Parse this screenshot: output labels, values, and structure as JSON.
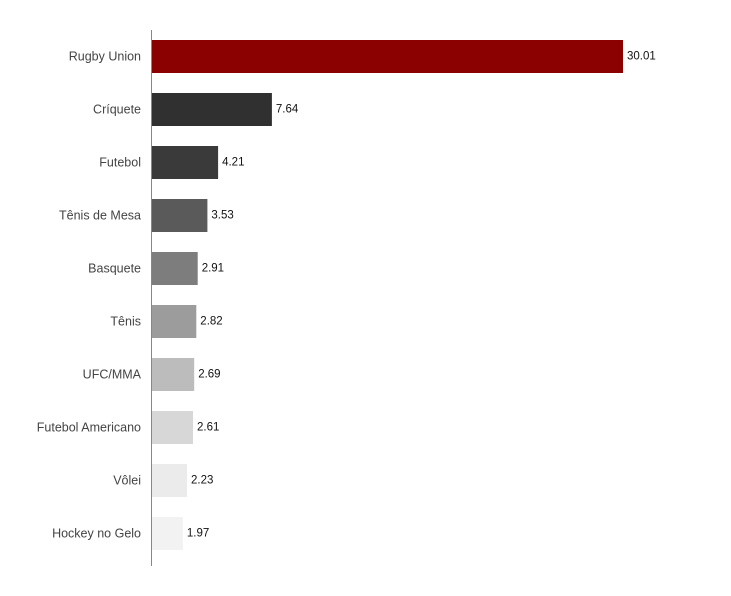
{
  "chart_data": {
    "type": "bar",
    "orientation": "horizontal",
    "categories": [
      "Rugby Union",
      "Críquete",
      "Futebol",
      "Tênis de Mesa",
      "Basquete",
      "Tênis",
      "UFC/MMA",
      "Futebol Americano",
      "Vôlei",
      "Hockey no Gelo"
    ],
    "values": [
      30.01,
      7.64,
      4.21,
      3.53,
      2.91,
      2.82,
      2.69,
      2.61,
      2.23,
      1.97
    ],
    "value_labels": [
      "30.01",
      "7.64",
      "4.21",
      "3.53",
      "2.91",
      "2.82",
      "2.69",
      "2.61",
      "2.23",
      "1.97"
    ],
    "colors": [
      "#8b0000",
      "#303030",
      "#3a3a3a",
      "#5a5a5a",
      "#7d7d7d",
      "#9c9c9c",
      "#bcbcbc",
      "#d7d7d7",
      "#ebebeb",
      "#f2f2f2"
    ],
    "xlim": [
      0,
      30.01
    ],
    "title": "",
    "xlabel": "",
    "ylabel": "",
    "grid": false,
    "legend": "none"
  }
}
